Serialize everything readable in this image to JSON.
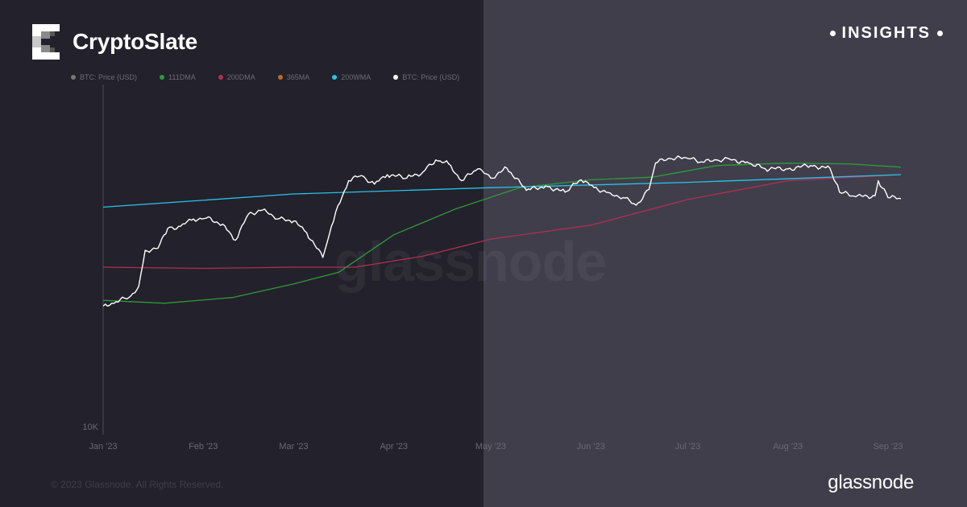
{
  "brand": {
    "name": "CryptoSlate",
    "logo_icon": "cryptoslate-logo-icon"
  },
  "tag": {
    "label": "INSIGHTS"
  },
  "footer": {
    "copyright": "© 2023 Glassnode. All Rights Reserved.",
    "logo_text": "glassnode"
  },
  "watermark": "glassnode",
  "colors": {
    "left_bg": "#23212b",
    "right_bg": "#403e4b"
  },
  "chart_data": {
    "type": "line",
    "title": "",
    "x_ticks": [
      "Jan '23",
      "Feb '23",
      "Mar '23",
      "Apr '23",
      "May '23",
      "Jun '23",
      "Jul '23",
      "Aug '23",
      "Sep '23"
    ],
    "y_ticks": [
      "10K"
    ],
    "y_scale": "log",
    "grid": false,
    "legend_position": "top-left",
    "series": [
      {
        "name": "BTC: Price (USD)",
        "color": "#777777",
        "points": []
      },
      {
        "name": "111DMA",
        "color": "#2e9a3a",
        "points": [
          [
            "2023-01-01",
            16900
          ],
          [
            "2023-01-20",
            16700
          ],
          [
            "2023-02-10",
            17100
          ],
          [
            "2023-03-01",
            18100
          ],
          [
            "2023-03-15",
            19000
          ],
          [
            "2023-04-01",
            22200
          ],
          [
            "2023-04-20",
            24700
          ],
          [
            "2023-05-10",
            27000
          ],
          [
            "2023-06-01",
            27900
          ],
          [
            "2023-06-20",
            28200
          ],
          [
            "2023-07-10",
            29600
          ],
          [
            "2023-08-01",
            29900
          ],
          [
            "2023-08-20",
            29800
          ],
          [
            "2023-09-05",
            29400
          ]
        ]
      },
      {
        "name": "200DMA",
        "color": "#b03050",
        "points": [
          [
            "2023-01-01",
            19400
          ],
          [
            "2023-02-01",
            19300
          ],
          [
            "2023-03-01",
            19400
          ],
          [
            "2023-03-20",
            19400
          ],
          [
            "2023-04-10",
            20300
          ],
          [
            "2023-05-01",
            21800
          ],
          [
            "2023-06-01",
            23100
          ],
          [
            "2023-07-01",
            25700
          ],
          [
            "2023-08-01",
            27800
          ],
          [
            "2023-09-05",
            28500
          ]
        ]
      },
      {
        "name": "365MA",
        "color": "#b86a2a",
        "points": []
      },
      {
        "name": "200WMA",
        "color": "#28c3e8",
        "points": [
          [
            "2023-01-01",
            24900
          ],
          [
            "2023-03-01",
            26300
          ],
          [
            "2023-05-01",
            27000
          ],
          [
            "2023-07-01",
            27600
          ],
          [
            "2023-09-05",
            28500
          ]
        ]
      },
      {
        "name": "BTC: Price (USD)",
        "color": "#ffffff",
        "points": [
          [
            "2023-01-01",
            16500
          ],
          [
            "2023-01-05",
            16800
          ],
          [
            "2023-01-09",
            17100
          ],
          [
            "2023-01-12",
            17900
          ],
          [
            "2023-01-14",
            20800
          ],
          [
            "2023-01-18",
            21000
          ],
          [
            "2023-01-21",
            22800
          ],
          [
            "2023-01-25",
            23000
          ],
          [
            "2023-01-29",
            23700
          ],
          [
            "2023-02-02",
            23800
          ],
          [
            "2023-02-07",
            23200
          ],
          [
            "2023-02-11",
            21700
          ],
          [
            "2023-02-15",
            24200
          ],
          [
            "2023-02-20",
            24700
          ],
          [
            "2023-02-24",
            23700
          ],
          [
            "2023-03-01",
            23500
          ],
          [
            "2023-03-05",
            22400
          ],
          [
            "2023-03-10",
            20200
          ],
          [
            "2023-03-12",
            22200
          ],
          [
            "2023-03-14",
            24400
          ],
          [
            "2023-03-18",
            27800
          ],
          [
            "2023-03-22",
            28400
          ],
          [
            "2023-03-26",
            27400
          ],
          [
            "2023-03-30",
            28500
          ],
          [
            "2023-04-05",
            28100
          ],
          [
            "2023-04-10",
            28800
          ],
          [
            "2023-04-14",
            30300
          ],
          [
            "2023-04-18",
            29800
          ],
          [
            "2023-04-22",
            27800
          ],
          [
            "2023-04-27",
            29200
          ],
          [
            "2023-05-01",
            28100
          ],
          [
            "2023-05-06",
            29300
          ],
          [
            "2023-05-12",
            26700
          ],
          [
            "2023-05-18",
            27200
          ],
          [
            "2023-05-24",
            26500
          ],
          [
            "2023-05-29",
            27900
          ],
          [
            "2023-06-02",
            27000
          ],
          [
            "2023-06-07",
            26400
          ],
          [
            "2023-06-11",
            25900
          ],
          [
            "2023-06-15",
            25100
          ],
          [
            "2023-06-19",
            26800
          ],
          [
            "2023-06-21",
            29900
          ],
          [
            "2023-06-25",
            30500
          ],
          [
            "2023-07-01",
            30500
          ],
          [
            "2023-07-06",
            30000
          ],
          [
            "2023-07-10",
            30300
          ],
          [
            "2023-07-14",
            30400
          ],
          [
            "2023-07-20",
            29900
          ],
          [
            "2023-07-25",
            29200
          ],
          [
            "2023-08-01",
            29200
          ],
          [
            "2023-08-08",
            29600
          ],
          [
            "2023-08-14",
            29300
          ],
          [
            "2023-08-17",
            26500
          ],
          [
            "2023-08-22",
            26000
          ],
          [
            "2023-08-28",
            26100
          ],
          [
            "2023-08-29",
            27800
          ],
          [
            "2023-09-01",
            25900
          ],
          [
            "2023-09-05",
            25800
          ]
        ]
      }
    ]
  }
}
